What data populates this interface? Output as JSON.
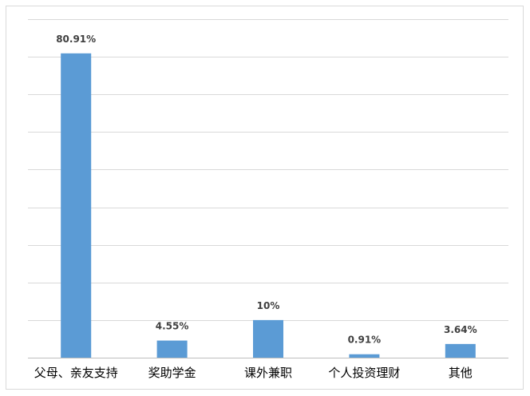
{
  "chart_data": {
    "type": "bar",
    "categories": [
      "父母、亲友支持",
      "奖助学金",
      "课外兼职",
      "个人投资理财",
      "其他"
    ],
    "values": [
      80.91,
      4.55,
      10,
      0.91,
      3.64
    ],
    "value_labels": [
      "80.91%",
      "4.55%",
      "10%",
      "0.91%",
      "3.64%"
    ],
    "title": "",
    "xlabel": "",
    "ylabel": "",
    "ylim": [
      0,
      90
    ],
    "y_tick_step": 10,
    "y_tick_labels_shown": false,
    "grid": true,
    "legend": "none",
    "bar_color": "#5b9bd5",
    "grid_color": "#d9d9d9"
  }
}
